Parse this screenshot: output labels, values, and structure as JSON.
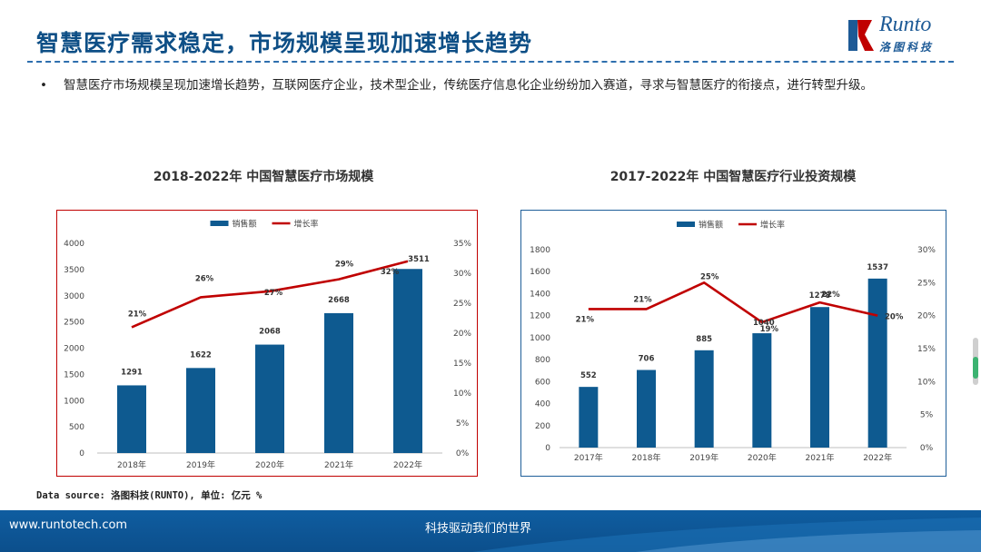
{
  "header": {
    "title": "智慧医疗需求稳定，市场规模呈现加速增长趋势",
    "logo_text": "Runto",
    "logo_sub": "洛图科技"
  },
  "bullet": {
    "marker": "•",
    "text": "智慧医疗市场规模呈现加速增长趋势，互联网医疗企业，技术型企业，传统医疗信息化企业纷纷加入赛道，寻求与智慧医疗的衔接点，进行转型升级。"
  },
  "source_note": "Data source: 洛图科技(RUNTO), 单位: 亿元 %",
  "footer": {
    "url": "www.runtotech.com",
    "slogan": "科技驱动我们的世界"
  },
  "colors": {
    "bar": "#0e5a90",
    "line": "#c00000",
    "title": "#0e4f86",
    "frame_left": "#c00000",
    "frame_right": "#1f5f99",
    "footer": "#0c4f8c"
  },
  "chart_data": [
    {
      "type": "bar",
      "title": "2018-2022年 中国智慧医疗市场规模",
      "categories": [
        "2018年",
        "2019年",
        "2020年",
        "2021年",
        "2022年"
      ],
      "legend": [
        "销售额",
        "增长率"
      ],
      "legend_position": "top-center",
      "series": [
        {
          "name": "销售额",
          "type": "bar",
          "axis": "left",
          "values": [
            1291,
            1622,
            2068,
            2668,
            3511
          ]
        },
        {
          "name": "增长率",
          "type": "line",
          "axis": "right",
          "values": [
            21,
            26,
            27,
            29,
            32
          ]
        }
      ],
      "ylim": [
        0,
        4000
      ],
      "yticks": [
        0,
        500,
        1000,
        1500,
        2000,
        2500,
        3000,
        3500,
        4000
      ],
      "y2lim": [
        0,
        35
      ],
      "y2ticks": [
        "0%",
        "5%",
        "10%",
        "15%",
        "20%",
        "25%",
        "30%",
        "35%"
      ],
      "grid": false
    },
    {
      "type": "bar",
      "title": "2017-2022年 中国智慧医疗行业投资规模",
      "categories": [
        "2017年",
        "2018年",
        "2019年",
        "2020年",
        "2021年",
        "2022年"
      ],
      "legend": [
        "销售额",
        "增长率"
      ],
      "legend_position": "top-center",
      "series": [
        {
          "name": "销售额",
          "type": "bar",
          "axis": "left",
          "values": [
            552,
            706,
            885,
            1040,
            1278,
            1537
          ]
        },
        {
          "name": "增长率",
          "type": "line",
          "axis": "right",
          "values": [
            21,
            21,
            25,
            19,
            22,
            20
          ]
        }
      ],
      "ylim": [
        0,
        1800
      ],
      "yticks": [
        0,
        200,
        400,
        600,
        800,
        1000,
        1200,
        1400,
        1600,
        1800
      ],
      "y2lim": [
        0,
        30
      ],
      "y2ticks": [
        "0%",
        "5%",
        "10%",
        "15%",
        "20%",
        "25%",
        "30%"
      ],
      "grid": false
    }
  ]
}
